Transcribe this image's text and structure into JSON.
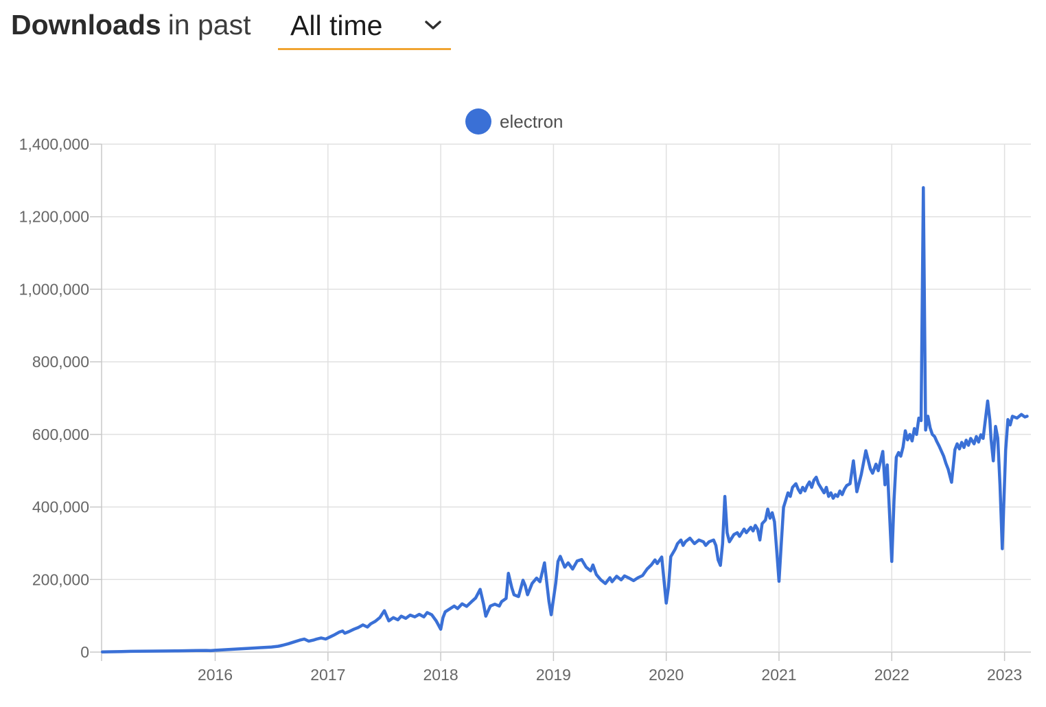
{
  "header": {
    "title_bold": "Downloads",
    "title_suffix": "in past",
    "period_selector": {
      "value": "All time",
      "icon": "chevron-down",
      "underline_color": "#f0a431"
    }
  },
  "colors": {
    "accent_underline": "#f0a431",
    "series_line": "#3a70d6",
    "grid": "#e0e0e0",
    "axis": "#c8c8c8",
    "tick_text": "#666666",
    "legend_text": "#4f4f4f"
  },
  "chart_data": {
    "type": "line",
    "title": "Downloads in past All time",
    "legend_position": "top-center",
    "grid": true,
    "x_axis": {
      "tick_labels": [
        "2016",
        "2017",
        "2018",
        "2019",
        "2020",
        "2021",
        "2022",
        "2023"
      ],
      "tick_values": [
        2016,
        2017,
        2018,
        2019,
        2020,
        2021,
        2022,
        2023
      ],
      "range": [
        2015.0,
        2023.25
      ]
    },
    "y_axis": {
      "tick_labels": [
        "0",
        "200,000",
        "400,000",
        "600,000",
        "800,000",
        "1,000,000",
        "1,200,000",
        "1,400,000"
      ],
      "tick_values": [
        0,
        200000,
        400000,
        600000,
        800000,
        1000000,
        1200000,
        1400000
      ],
      "range": [
        0,
        1400000
      ]
    },
    "series": [
      {
        "name": "electron",
        "color": "#3a70d6",
        "points": [
          [
            2015.0,
            500
          ],
          [
            2015.08,
            1000
          ],
          [
            2015.17,
            1500
          ],
          [
            2015.25,
            2000
          ],
          [
            2015.33,
            2300
          ],
          [
            2015.42,
            2600
          ],
          [
            2015.5,
            2900
          ],
          [
            2015.58,
            3100
          ],
          [
            2015.67,
            3400
          ],
          [
            2015.75,
            3800
          ],
          [
            2015.83,
            4200
          ],
          [
            2015.92,
            4600
          ],
          [
            2015.96,
            4000
          ],
          [
            2016.0,
            5000
          ],
          [
            2016.08,
            6500
          ],
          [
            2016.17,
            8000
          ],
          [
            2016.25,
            9500
          ],
          [
            2016.33,
            11000
          ],
          [
            2016.42,
            12500
          ],
          [
            2016.5,
            14000
          ],
          [
            2016.56,
            16000
          ],
          [
            2016.6,
            19000
          ],
          [
            2016.65,
            23000
          ],
          [
            2016.7,
            28000
          ],
          [
            2016.75,
            33000
          ],
          [
            2016.79,
            36000
          ],
          [
            2016.83,
            30000
          ],
          [
            2016.87,
            33000
          ],
          [
            2016.9,
            36000
          ],
          [
            2016.94,
            39000
          ],
          [
            2016.98,
            36000
          ],
          [
            2017.02,
            42000
          ],
          [
            2017.06,
            48000
          ],
          [
            2017.1,
            55000
          ],
          [
            2017.13,
            58000
          ],
          [
            2017.15,
            52000
          ],
          [
            2017.19,
            57000
          ],
          [
            2017.23,
            63000
          ],
          [
            2017.27,
            68000
          ],
          [
            2017.31,
            75000
          ],
          [
            2017.35,
            69000
          ],
          [
            2017.38,
            78000
          ],
          [
            2017.42,
            85000
          ],
          [
            2017.46,
            95000
          ],
          [
            2017.5,
            114000
          ],
          [
            2017.52,
            100000
          ],
          [
            2017.54,
            86000
          ],
          [
            2017.58,
            95000
          ],
          [
            2017.62,
            89000
          ],
          [
            2017.65,
            99000
          ],
          [
            2017.69,
            93000
          ],
          [
            2017.73,
            102000
          ],
          [
            2017.77,
            97000
          ],
          [
            2017.81,
            104000
          ],
          [
            2017.85,
            97000
          ],
          [
            2017.88,
            109000
          ],
          [
            2017.92,
            103000
          ],
          [
            2017.96,
            86000
          ],
          [
            2018.0,
            63000
          ],
          [
            2018.02,
            95000
          ],
          [
            2018.04,
            111000
          ],
          [
            2018.08,
            119000
          ],
          [
            2018.12,
            127000
          ],
          [
            2018.15,
            120000
          ],
          [
            2018.19,
            133000
          ],
          [
            2018.23,
            126000
          ],
          [
            2018.27,
            138000
          ],
          [
            2018.31,
            149000
          ],
          [
            2018.35,
            173000
          ],
          [
            2018.38,
            133000
          ],
          [
            2018.4,
            99000
          ],
          [
            2018.44,
            127000
          ],
          [
            2018.48,
            132000
          ],
          [
            2018.52,
            127000
          ],
          [
            2018.54,
            139000
          ],
          [
            2018.58,
            148000
          ],
          [
            2018.6,
            217000
          ],
          [
            2018.63,
            178000
          ],
          [
            2018.65,
            158000
          ],
          [
            2018.69,
            153000
          ],
          [
            2018.71,
            176000
          ],
          [
            2018.73,
            198000
          ],
          [
            2018.75,
            183000
          ],
          [
            2018.77,
            158000
          ],
          [
            2018.81,
            189000
          ],
          [
            2018.85,
            204000
          ],
          [
            2018.88,
            194000
          ],
          [
            2018.92,
            246000
          ],
          [
            2018.96,
            140000
          ],
          [
            2018.98,
            103000
          ],
          [
            2019.02,
            190000
          ],
          [
            2019.04,
            250000
          ],
          [
            2019.06,
            264000
          ],
          [
            2019.1,
            234000
          ],
          [
            2019.13,
            246000
          ],
          [
            2019.17,
            229000
          ],
          [
            2019.21,
            251000
          ],
          [
            2019.25,
            255000
          ],
          [
            2019.29,
            234000
          ],
          [
            2019.33,
            224000
          ],
          [
            2019.35,
            240000
          ],
          [
            2019.38,
            214000
          ],
          [
            2019.42,
            199000
          ],
          [
            2019.46,
            189000
          ],
          [
            2019.5,
            205000
          ],
          [
            2019.52,
            194000
          ],
          [
            2019.56,
            209000
          ],
          [
            2019.6,
            199000
          ],
          [
            2019.63,
            210000
          ],
          [
            2019.67,
            204000
          ],
          [
            2019.71,
            197000
          ],
          [
            2019.75,
            205000
          ],
          [
            2019.79,
            211000
          ],
          [
            2019.83,
            229000
          ],
          [
            2019.87,
            241000
          ],
          [
            2019.9,
            254000
          ],
          [
            2019.92,
            244000
          ],
          [
            2019.96,
            262000
          ],
          [
            2020.0,
            135000
          ],
          [
            2020.02,
            180000
          ],
          [
            2020.04,
            263000
          ],
          [
            2020.08,
            284000
          ],
          [
            2020.1,
            299000
          ],
          [
            2020.13,
            309000
          ],
          [
            2020.15,
            294000
          ],
          [
            2020.17,
            304000
          ],
          [
            2020.21,
            314000
          ],
          [
            2020.25,
            299000
          ],
          [
            2020.29,
            309000
          ],
          [
            2020.33,
            304000
          ],
          [
            2020.35,
            294000
          ],
          [
            2020.38,
            304000
          ],
          [
            2020.42,
            309000
          ],
          [
            2020.44,
            294000
          ],
          [
            2020.46,
            254000
          ],
          [
            2020.48,
            239000
          ],
          [
            2020.5,
            299000
          ],
          [
            2020.52,
            429000
          ],
          [
            2020.54,
            329000
          ],
          [
            2020.56,
            304000
          ],
          [
            2020.58,
            314000
          ],
          [
            2020.6,
            324000
          ],
          [
            2020.63,
            329000
          ],
          [
            2020.65,
            319000
          ],
          [
            2020.67,
            329000
          ],
          [
            2020.69,
            339000
          ],
          [
            2020.71,
            329000
          ],
          [
            2020.75,
            344000
          ],
          [
            2020.77,
            334000
          ],
          [
            2020.79,
            349000
          ],
          [
            2020.81,
            339000
          ],
          [
            2020.83,
            309000
          ],
          [
            2020.85,
            354000
          ],
          [
            2020.88,
            364000
          ],
          [
            2020.9,
            394000
          ],
          [
            2020.92,
            369000
          ],
          [
            2020.94,
            384000
          ],
          [
            2020.96,
            359000
          ],
          [
            2020.98,
            279000
          ],
          [
            2021.0,
            195000
          ],
          [
            2021.02,
            299000
          ],
          [
            2021.04,
            399000
          ],
          [
            2021.06,
            419000
          ],
          [
            2021.08,
            439000
          ],
          [
            2021.1,
            429000
          ],
          [
            2021.12,
            454000
          ],
          [
            2021.15,
            464000
          ],
          [
            2021.17,
            449000
          ],
          [
            2021.19,
            439000
          ],
          [
            2021.21,
            454000
          ],
          [
            2021.23,
            444000
          ],
          [
            2021.25,
            459000
          ],
          [
            2021.27,
            469000
          ],
          [
            2021.29,
            454000
          ],
          [
            2021.31,
            474000
          ],
          [
            2021.33,
            482000
          ],
          [
            2021.35,
            464000
          ],
          [
            2021.38,
            449000
          ],
          [
            2021.4,
            439000
          ],
          [
            2021.42,
            454000
          ],
          [
            2021.44,
            429000
          ],
          [
            2021.46,
            439000
          ],
          [
            2021.48,
            424000
          ],
          [
            2021.5,
            434000
          ],
          [
            2021.52,
            429000
          ],
          [
            2021.54,
            444000
          ],
          [
            2021.56,
            434000
          ],
          [
            2021.58,
            449000
          ],
          [
            2021.6,
            459000
          ],
          [
            2021.63,
            464000
          ],
          [
            2021.66,
            527000
          ],
          [
            2021.69,
            442000
          ],
          [
            2021.73,
            490000
          ],
          [
            2021.77,
            555000
          ],
          [
            2021.81,
            505000
          ],
          [
            2021.83,
            493000
          ],
          [
            2021.86,
            518000
          ],
          [
            2021.88,
            500000
          ],
          [
            2021.92,
            553000
          ],
          [
            2021.94,
            461000
          ],
          [
            2021.96,
            516000
          ],
          [
            2022.0,
            250000
          ],
          [
            2022.02,
            420000
          ],
          [
            2022.04,
            537000
          ],
          [
            2022.06,
            550000
          ],
          [
            2022.08,
            540000
          ],
          [
            2022.1,
            565000
          ],
          [
            2022.12,
            610000
          ],
          [
            2022.14,
            585000
          ],
          [
            2022.16,
            600000
          ],
          [
            2022.18,
            582000
          ],
          [
            2022.2,
            616000
          ],
          [
            2022.22,
            600000
          ],
          [
            2022.24,
            645000
          ],
          [
            2022.26,
            638000
          ],
          [
            2022.28,
            1280000
          ],
          [
            2022.3,
            612000
          ],
          [
            2022.32,
            650000
          ],
          [
            2022.34,
            618000
          ],
          [
            2022.36,
            600000
          ],
          [
            2022.38,
            594000
          ],
          [
            2022.4,
            580000
          ],
          [
            2022.42,
            568000
          ],
          [
            2022.44,
            554000
          ],
          [
            2022.46,
            540000
          ],
          [
            2022.48,
            520000
          ],
          [
            2022.5,
            504000
          ],
          [
            2022.53,
            468000
          ],
          [
            2022.56,
            558000
          ],
          [
            2022.58,
            574000
          ],
          [
            2022.6,
            560000
          ],
          [
            2022.62,
            578000
          ],
          [
            2022.64,
            564000
          ],
          [
            2022.66,
            584000
          ],
          [
            2022.68,
            570000
          ],
          [
            2022.7,
            589000
          ],
          [
            2022.73,
            574000
          ],
          [
            2022.75,
            594000
          ],
          [
            2022.77,
            579000
          ],
          [
            2022.79,
            599000
          ],
          [
            2022.81,
            589000
          ],
          [
            2022.85,
            692000
          ],
          [
            2022.87,
            640000
          ],
          [
            2022.88,
            588000
          ],
          [
            2022.9,
            527000
          ],
          [
            2022.92,
            622000
          ],
          [
            2022.94,
            590000
          ],
          [
            2022.96,
            460000
          ],
          [
            2022.98,
            285000
          ],
          [
            2023.01,
            556000
          ],
          [
            2023.03,
            641000
          ],
          [
            2023.05,
            626000
          ],
          [
            2023.07,
            650000
          ],
          [
            2023.11,
            645000
          ],
          [
            2023.15,
            655000
          ],
          [
            2023.18,
            648000
          ],
          [
            2023.2,
            650000
          ]
        ]
      }
    ]
  }
}
